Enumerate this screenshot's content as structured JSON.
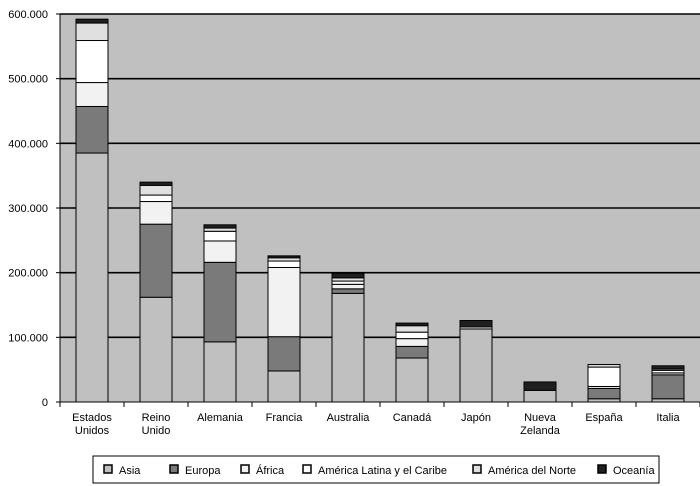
{
  "chart_data": {
    "type": "bar",
    "stacked": true,
    "categories": [
      "Estados Unidos",
      "Reino Unido",
      "Alemania",
      "Francia",
      "Australia",
      "Canadá",
      "Japón",
      "Nueva Zelanda",
      "España",
      "Italia"
    ],
    "category_label_lines": [
      [
        "Estados",
        "Unidos"
      ],
      [
        "Reino",
        "Unido"
      ],
      [
        "Alemania"
      ],
      [
        "Francia"
      ],
      [
        "Australia"
      ],
      [
        "Canadá"
      ],
      [
        "Japón"
      ],
      [
        "Nueva",
        "Zelanda"
      ],
      [
        "España"
      ],
      [
        "Italia"
      ]
    ],
    "series": [
      {
        "name": "Asia",
        "values": [
          385000,
          162000,
          93000,
          48000,
          168000,
          68000,
          113000,
          18000,
          5000,
          5000
        ],
        "color": "#c0c0c0"
      },
      {
        "name": "Europa",
        "values": [
          72000,
          113000,
          123000,
          53000,
          7000,
          18000,
          0,
          0,
          16000,
          37000
        ],
        "color": "#7a7a7a"
      },
      {
        "name": "África",
        "values": [
          37000,
          35000,
          33000,
          107000,
          7000,
          12000,
          0,
          0,
          3000,
          3000
        ],
        "color": "#f2f2f2"
      },
      {
        "name": "América Latina y el Caribe",
        "values": [
          65000,
          10000,
          15000,
          10000,
          5000,
          10000,
          3000,
          0,
          30000,
          4000
        ],
        "color": "#ffffff"
      },
      {
        "name": "América del Norte",
        "values": [
          27000,
          15000,
          5000,
          5000,
          5000,
          10000,
          0,
          0,
          4000,
          2000
        ],
        "color": "#e0e0e0"
      },
      {
        "name": "Oceanía",
        "values": [
          6000,
          5000,
          5000,
          3000,
          7000,
          4000,
          10000,
          13000,
          0,
          5000
        ],
        "color": "#202020"
      }
    ],
    "ylim": [
      0,
      600000
    ],
    "yticks": [
      0,
      100000,
      200000,
      300000,
      400000,
      500000,
      600000
    ],
    "ytick_labels": [
      "0",
      "100.000",
      "200.000",
      "300.000",
      "400.000",
      "500.000",
      "600.000"
    ],
    "grid": true,
    "legend_position": "bottom",
    "plot_background": "#c0c0c0"
  }
}
